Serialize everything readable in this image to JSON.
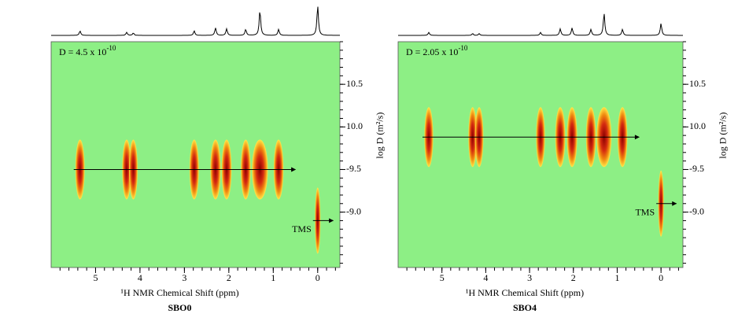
{
  "chart_data": [
    {
      "type": "dosy",
      "title": "SBO0",
      "xlabel": "¹H NMR  Chemical Shift (ppm)",
      "ylabel": "log D (m²/s)",
      "annotation": "D = 4.5 x 10",
      "annotation_exponent": "-10",
      "tms_label": "TMS",
      "xlim": [
        6,
        -0.5
      ],
      "xticks": [
        5,
        4,
        3,
        2,
        1,
        0
      ],
      "ylim": [
        -11,
        -8.35
      ],
      "yticks": [
        {
          "value": -10.5,
          "label": "10.5"
        },
        {
          "value": -10,
          "label": "10.0"
        },
        {
          "value": -9.5,
          "label": "-9.5"
        },
        {
          "value": -9,
          "label": "-9.0"
        }
      ],
      "peaks": {
        "x": [
          5.35,
          4.3,
          4.15,
          2.78,
          2.3,
          2.05,
          1.62,
          1.3,
          0.88
        ],
        "values": [
          -9.5,
          -9.5,
          -9.5,
          -9.5,
          -9.5,
          -9.5,
          -9.5,
          -9.5,
          -9.5
        ],
        "intensity": [
          0.15,
          0.1,
          0.08,
          0.15,
          0.25,
          0.22,
          0.2,
          0.85,
          0.2
        ]
      },
      "tms": {
        "x": 0,
        "value": -8.9,
        "intensity": 1
      }
    },
    {
      "type": "dosy",
      "title": "SBO4",
      "xlabel": "¹H NMR  Chemical Shift (ppm)",
      "ylabel": "log D (m²/s)",
      "annotation": "D = 2.05 x 10",
      "annotation_exponent": "-10",
      "tms_label": "TMS",
      "xlim": [
        6,
        -0.5
      ],
      "xticks": [
        5,
        4,
        3,
        2,
        1,
        0
      ],
      "ylim": [
        -11,
        -8.35
      ],
      "yticks": [
        {
          "value": -10.5,
          "label": "10.5"
        },
        {
          "value": -10,
          "label": "10.0"
        },
        {
          "value": -9.5,
          "label": "-9.5"
        },
        {
          "value": -9,
          "label": "-9.0"
        }
      ],
      "peaks": {
        "x": [
          5.3,
          4.3,
          4.15,
          2.75,
          2.3,
          2.03,
          1.6,
          1.3,
          0.88
        ],
        "values": [
          -9.88,
          -9.88,
          -9.88,
          -9.88,
          -9.88,
          -9.88,
          -9.88,
          -9.88,
          -9.88
        ],
        "intensity": [
          0.1,
          0.06,
          0.06,
          0.1,
          0.22,
          0.25,
          0.2,
          0.75,
          0.2
        ]
      },
      "tms": {
        "x": 0,
        "value": -9.1,
        "intensity": 0.4
      }
    }
  ]
}
